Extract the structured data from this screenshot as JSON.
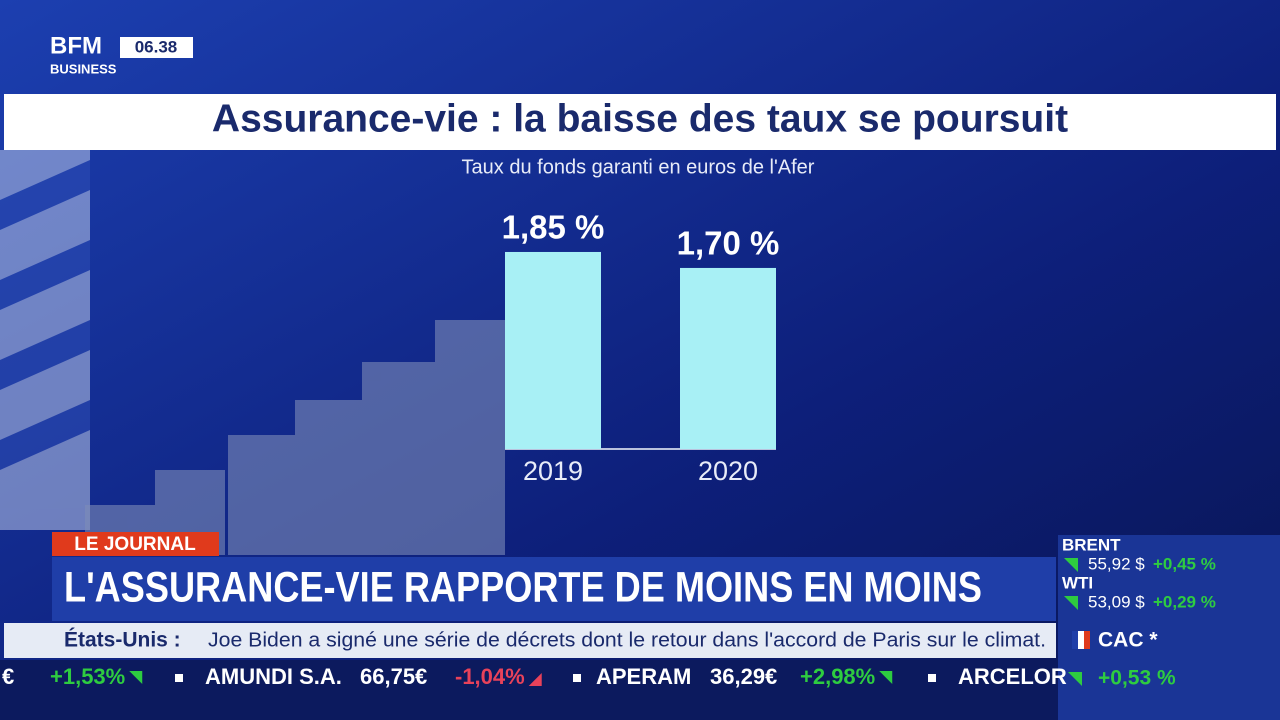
{
  "logo": {
    "brand": "BFM",
    "sub": "BUSINESS",
    "time": "06.38"
  },
  "chart_data": {
    "type": "bar",
    "title": "Assurance-vie : la baisse des taux se poursuit",
    "subtitle": "Taux du fonds garanti en euros de l'Afer",
    "categories": [
      "2019",
      "2020"
    ],
    "values": [
      1.85,
      1.7
    ],
    "value_labels": [
      "1,85 %",
      "1,70 %"
    ],
    "color": "#a8f0f5"
  },
  "tag": "LE JOURNAL",
  "headline": "L'ASSURANCE-VIE RAPPORTE DE MOINS EN MOINS",
  "news": {
    "label": "États-Unis :",
    "text": "Joe Biden a signé une série de décrets dont le retour dans l'accord de Paris sur le climat."
  },
  "markets": [
    {
      "name": "BRENT",
      "price": "55,92 $",
      "change": "+0,45 %"
    },
    {
      "name": "WTI",
      "price": "53,09 $",
      "change": "+0,29 %"
    }
  ],
  "index": {
    "name": "CAC *",
    "change": "+0,53 %"
  },
  "stocks": [
    "€",
    "+1,53%",
    "AMUNDI S.A.",
    "66,75€",
    "-1,04%",
    "APERAM",
    "36,29€",
    "+2,98%",
    "ARCELOR"
  ]
}
